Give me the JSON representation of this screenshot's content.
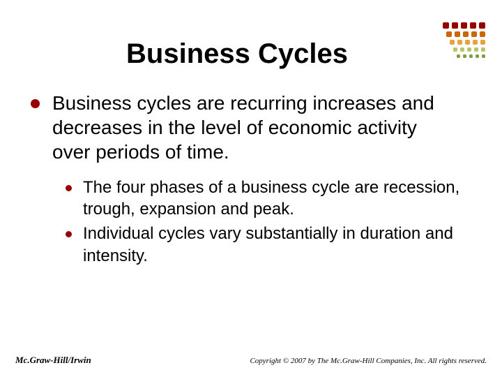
{
  "title": "Business Cycles",
  "main_bullet": {
    "text": "Business cycles are recurring increases and decreases in the level of economic activity over periods of time.",
    "color": "#990000"
  },
  "sub_bullets": [
    {
      "text": "The four phases of a business cycle are recession, trough, expansion and peak.",
      "color": "#990000"
    },
    {
      "text": "Individual cycles vary substantially in duration and intensity.",
      "color": "#990000"
    }
  ],
  "footer": {
    "left": "Mc.Graw-Hill/Irwin",
    "right": "Copyright © 2007 by The Mc.Graw-Hill Companies, Inc. All rights reserved."
  },
  "decoration": {
    "rows": [
      {
        "size": 9,
        "colors": [
          "#990000",
          "#990000",
          "#990000",
          "#990000",
          "#990000"
        ]
      },
      {
        "size": 8,
        "colors": [
          "#cc6600",
          "#cc6600",
          "#cc6600",
          "#cc6600",
          "#cc6600"
        ]
      },
      {
        "size": 7,
        "colors": [
          "#e8a23d",
          "#e8a23d",
          "#e8a23d",
          "#e8a23d",
          "#e8a23d"
        ]
      },
      {
        "size": 6,
        "colors": [
          "#b6c46a",
          "#b6c46a",
          "#b6c46a",
          "#b6c46a",
          "#b6c46a"
        ]
      },
      {
        "size": 5,
        "colors": [
          "#7a9e3f",
          "#7a9e3f",
          "#7a9e3f",
          "#7a9e3f",
          "#7a9e3f"
        ]
      }
    ]
  }
}
